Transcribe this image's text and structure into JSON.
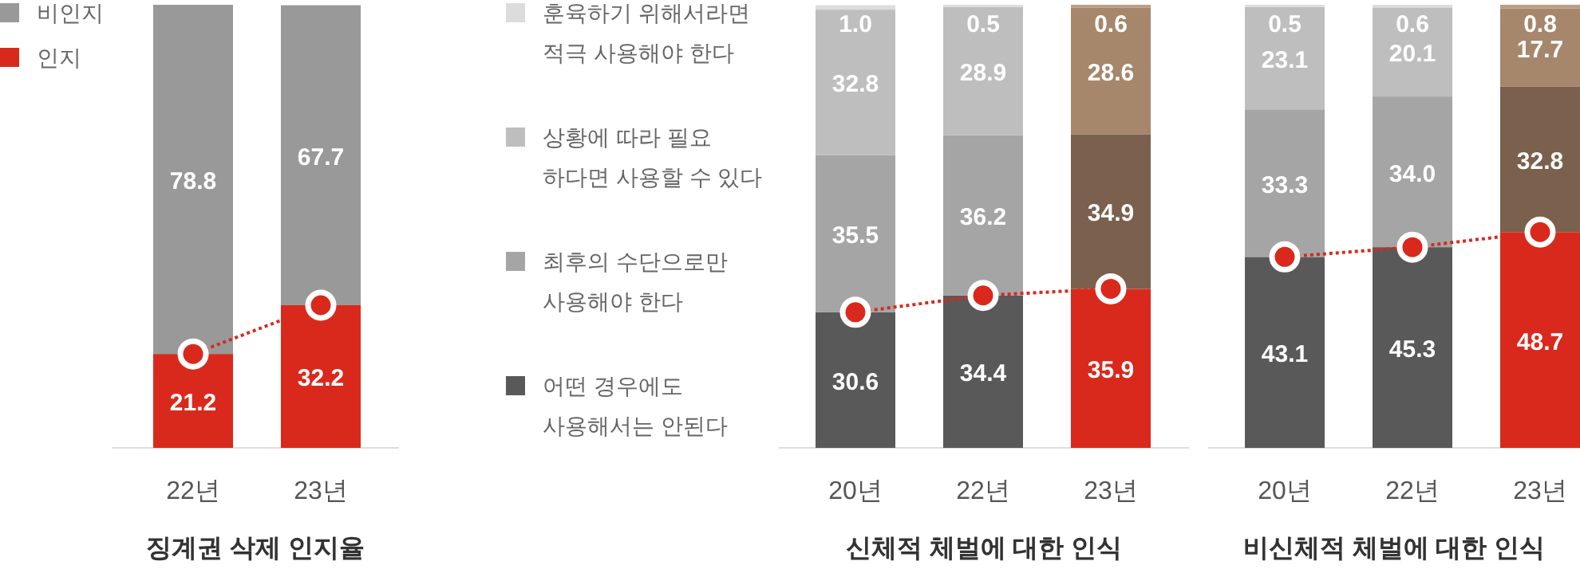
{
  "chart_data": [
    {
      "type": "bar",
      "title": "징계권 삭제 인지율",
      "categories": [
        "22년",
        "23년"
      ],
      "stacked": true,
      "ylim": [
        0,
        100
      ],
      "tick_labels": "x",
      "data_labels": true,
      "legend": "top left",
      "series": [
        {
          "name": "인지",
          "color": "#d9291c",
          "colors": [
            "#d9291c",
            "#d9291c"
          ],
          "values": [
            21.2,
            32.2
          ]
        },
        {
          "name": "비인지",
          "color": "#999999",
          "colors": [
            "#999999",
            "#999999"
          ],
          "values": [
            78.8,
            67.7
          ]
        },
        {
          "type": "line",
          "color": "#d9291c",
          "values": [
            21.2,
            32.2
          ],
          "value_labels": [
            null,
            null
          ],
          "marker": "circle",
          "line_style": "dotted"
        }
      ]
    },
    {
      "type": "bar",
      "title": "신체적 체벌에 대한 인식",
      "categories": [
        "20년",
        "22년",
        "23년"
      ],
      "stacked": true,
      "ylim": [
        0,
        100
      ],
      "tick_labels": "x",
      "legend": "left",
      "series": [
        {
          "name": "어떤 경우에도\n사용해서는 안된다",
          "color": "#595959",
          "colors": [
            "#595959",
            "#595959",
            "#d9291c"
          ],
          "values": [
            30.6,
            34.4,
            35.9
          ],
          "value_labels": [
            "30.6",
            "34.4",
            "35.9"
          ]
        },
        {
          "name": "최후의 수단으로만\n사용해야 한다",
          "color": "#a5a5a5",
          "colors": [
            "#a5a5a5",
            "#a5a5a5",
            "#7a604d"
          ],
          "values": [
            35.5,
            36.2,
            34.9
          ],
          "value_labels": [
            "35.5",
            "36.2",
            "34.9"
          ]
        },
        {
          "name": "상황에 따라 필요\n하다면 사용할 수 있다",
          "color": "#bebebe",
          "colors": [
            "#bebebe",
            "#bebebe",
            "#a6876b"
          ],
          "values": [
            32.8,
            28.9,
            28.6
          ],
          "value_labels": [
            "32.8",
            "28.9",
            "28.6"
          ]
        },
        {
          "name": "훈육하기 위해서라면\n적극 사용해야 한다",
          "color": "#dcdcdc",
          "colors": [
            "#dcdcdc",
            "#dcdcdc",
            "#bb9e83"
          ],
          "values": [
            1.0,
            0.5,
            0.6
          ],
          "value_labels": [
            "1.0",
            "0.5",
            "0.6"
          ]
        },
        {
          "type": "line",
          "color": "#d9291c",
          "values": [
            30.6,
            34.4,
            35.9
          ],
          "value_labels": [
            null,
            null,
            null
          ],
          "marker": "circle",
          "line_style": "dotted"
        }
      ]
    },
    {
      "type": "bar",
      "title": "비신체적 체벌에 대한 인식",
      "categories": [
        "20년",
        "22년",
        "23년"
      ],
      "stacked": true,
      "ylim": [
        0,
        100
      ],
      "tick_labels": "x",
      "series": [
        {
          "colors": [
            "#595959",
            "#595959",
            "#d9291c"
          ],
          "values": [
            43.1,
            45.3,
            48.7
          ],
          "value_labels": [
            "43.1",
            "45.3",
            "48.7"
          ]
        },
        {
          "colors": [
            "#a5a5a5",
            "#a5a5a5",
            "#7a604d"
          ],
          "values": [
            33.3,
            34.0,
            32.8
          ],
          "value_labels": [
            "33.3",
            "34.0",
            "32.8"
          ]
        },
        {
          "colors": [
            "#bebebe",
            "#bebebe",
            "#a6876b"
          ],
          "values": [
            23.1,
            20.1,
            17.7
          ],
          "value_labels": [
            "23.1",
            "20.1",
            "17.7"
          ]
        },
        {
          "colors": [
            "#dcdcdc",
            "#dcdcdc",
            "#bb9e83"
          ],
          "values": [
            0.5,
            0.6,
            0.8
          ],
          "value_labels": [
            "0.5",
            "0.6",
            "0.8"
          ]
        },
        {
          "type": "line",
          "color": "#d9291c",
          "values": [
            43.1,
            45.3,
            48.7
          ],
          "value_labels": [
            null,
            null,
            null
          ],
          "marker": "circle",
          "line_style": "dotted"
        }
      ]
    }
  ]
}
